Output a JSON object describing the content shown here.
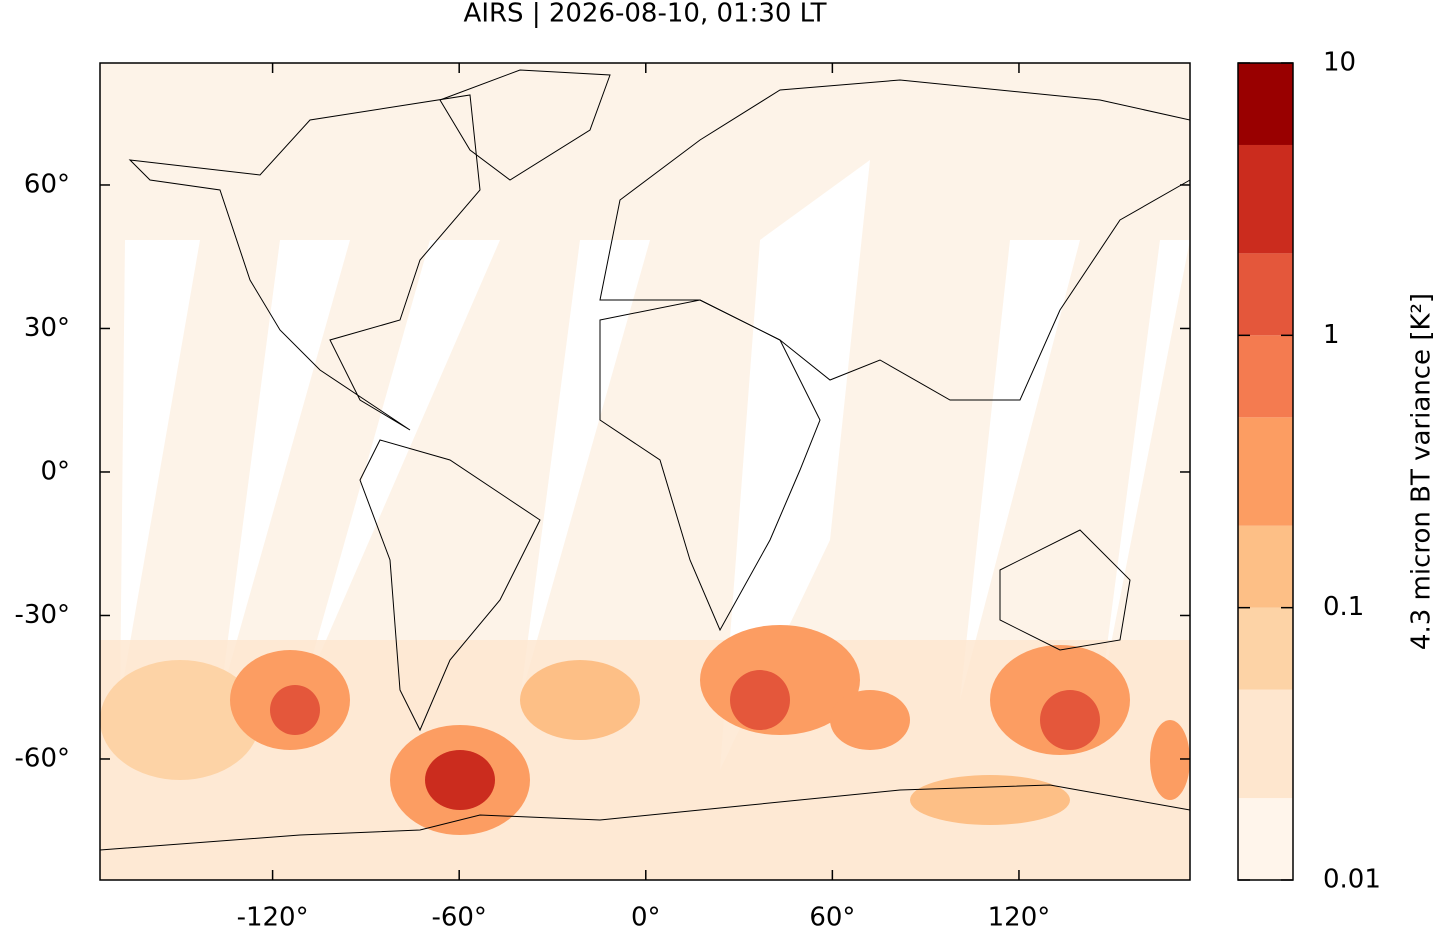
{
  "chart_data": {
    "type": "map",
    "title": "AIRS | 2026-08-10, 01:30 LT",
    "xlim": [
      -175.5,
      175
    ],
    "ylim": [
      -85.3,
      85.5
    ],
    "xticks": [
      {
        "value": -120,
        "label": "-120°"
      },
      {
        "value": -60,
        "label": "-60°"
      },
      {
        "value": 0,
        "label": "0°"
      },
      {
        "value": 60,
        "label": "60°"
      },
      {
        "value": 120,
        "label": "120°"
      }
    ],
    "yticks": [
      {
        "value": 60,
        "label": "60°"
      },
      {
        "value": 30,
        "label": "30°"
      },
      {
        "value": 0,
        "label": "0°"
      },
      {
        "value": -30,
        "label": "-30°"
      },
      {
        "value": -60,
        "label": "-60°"
      }
    ],
    "colorbar": {
      "label": "4.3 micron BT variance [K²]",
      "log": true,
      "lim": [
        0.01,
        10
      ],
      "levels": [
        0.01,
        0.02,
        0.05,
        0.1,
        0.2,
        0.5,
        1,
        2,
        5,
        10
      ],
      "colors": [
        "#fff5eb",
        "#fee6ce",
        "#fdd3a6",
        "#fdbf86",
        "#fc9d62",
        "#f47b50",
        "#e4573b",
        "#cb2c1e",
        "#990000"
      ],
      "ticks": [
        0.01,
        0.1,
        1,
        10
      ]
    }
  }
}
